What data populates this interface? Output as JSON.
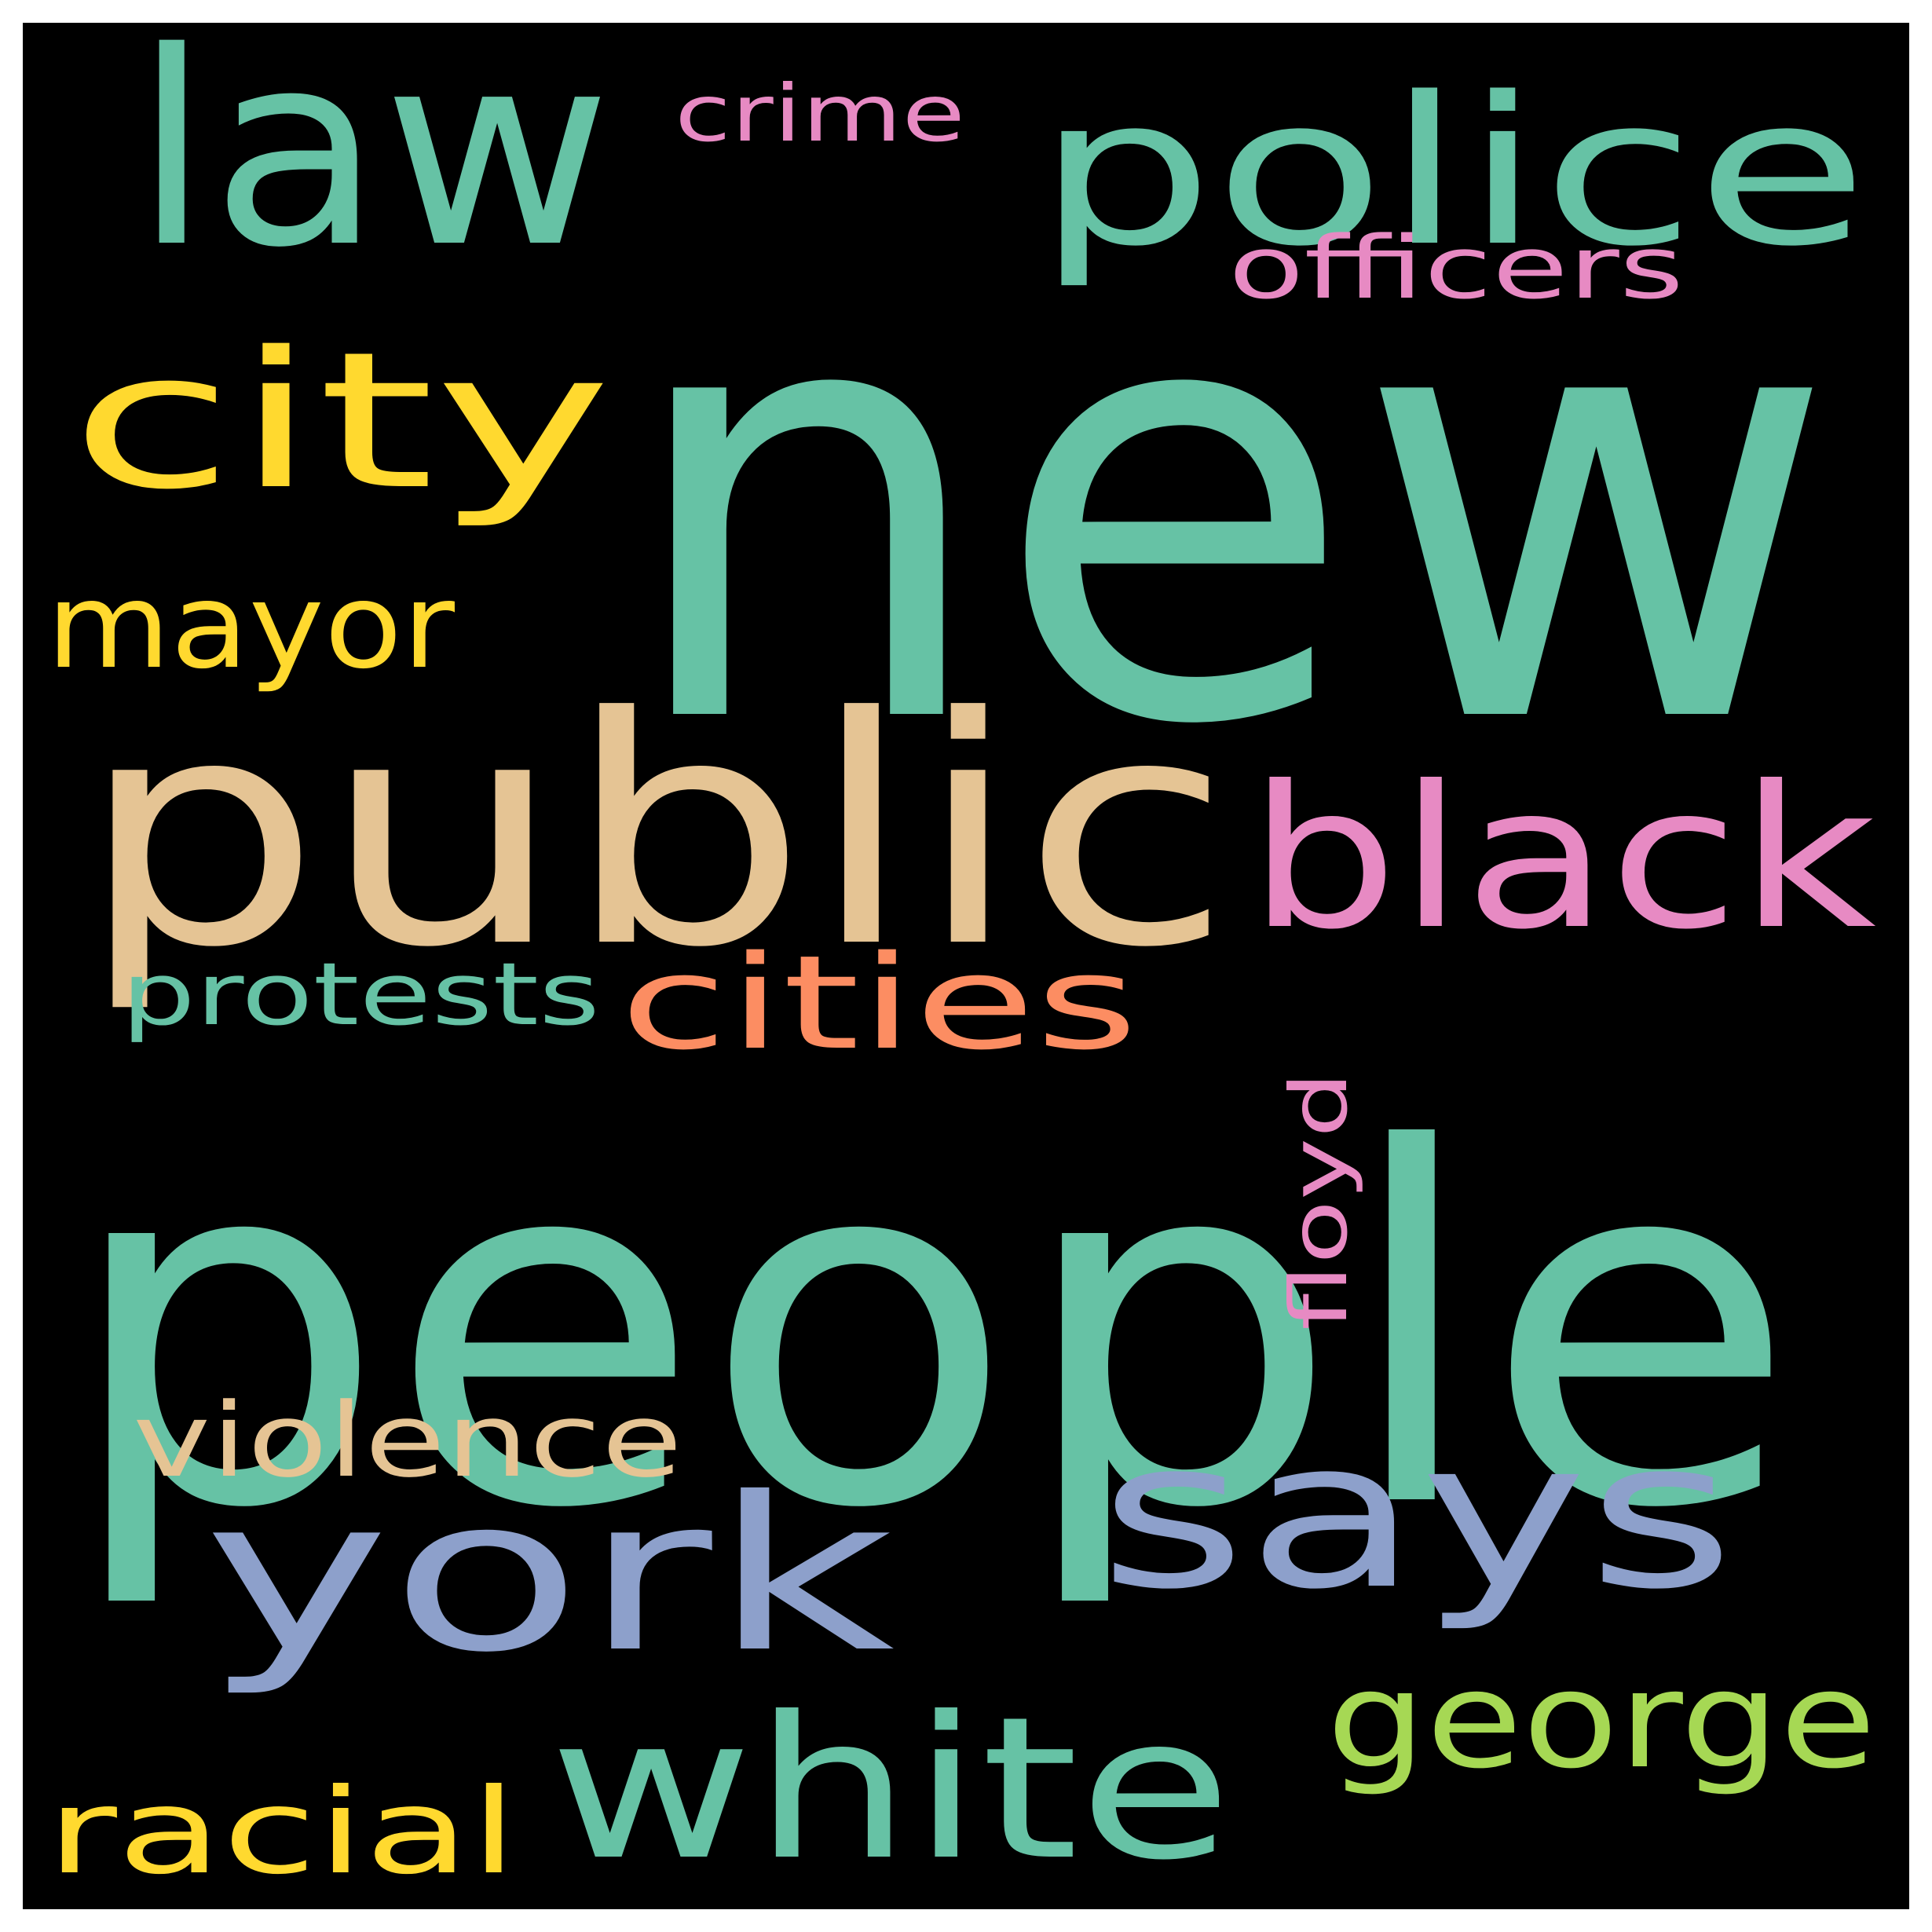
{
  "cloud": {
    "background": "#000000",
    "frame": "#ffffff",
    "words": [
      {
        "key": "new",
        "text": "new",
        "color": "#66c2a5"
      },
      {
        "key": "people",
        "text": "people",
        "color": "#66c2a5"
      },
      {
        "key": "public",
        "text": "public",
        "color": "#e5c494"
      },
      {
        "key": "police",
        "text": "police",
        "color": "#66c2a5"
      },
      {
        "key": "law",
        "text": "law",
        "color": "#66c2a5"
      },
      {
        "key": "city",
        "text": "city",
        "color": "#ffd92f"
      },
      {
        "key": "york",
        "text": "york",
        "color": "#8da0cb"
      },
      {
        "key": "says",
        "text": "says",
        "color": "#8da0cb"
      },
      {
        "key": "white",
        "text": "white",
        "color": "#66c2a5"
      },
      {
        "key": "black",
        "text": "black",
        "color": "#e78ac3"
      },
      {
        "key": "cities",
        "text": "cities",
        "color": "#fc8d62"
      },
      {
        "key": "george",
        "text": "george",
        "color": "#a6d854"
      },
      {
        "key": "mayor",
        "text": "mayor",
        "color": "#ffd92f"
      },
      {
        "key": "racial",
        "text": "racial",
        "color": "#ffd92f"
      },
      {
        "key": "violence",
        "text": "violence",
        "color": "#e5c494"
      },
      {
        "key": "protests",
        "text": "protests",
        "color": "#66c2a5"
      },
      {
        "key": "officers",
        "text": "officers",
        "color": "#e78ac3"
      },
      {
        "key": "crime",
        "text": "crime",
        "color": "#e78ac3"
      },
      {
        "key": "floyd",
        "text": "floyd",
        "color": "#e78ac3"
      }
    ]
  }
}
